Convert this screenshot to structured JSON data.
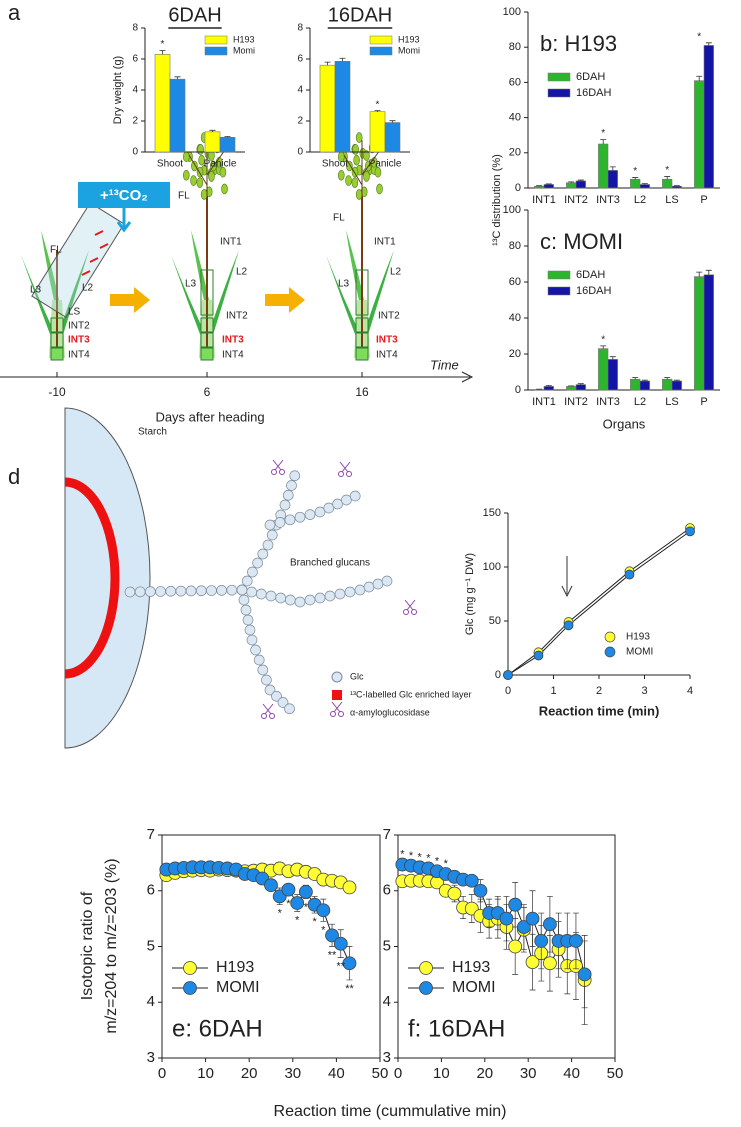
{
  "panel_labels": [
    "a",
    "d"
  ],
  "diagram_a": {
    "co2": "+¹³CO₂",
    "time": "Time",
    "axis_label": "Days after heading",
    "timepoints": [
      "-10",
      "6",
      "16"
    ],
    "plants": [
      {
        "labels": [
          "FL",
          "L3",
          "L2",
          "LS",
          "INT2",
          "INT3",
          "INT4"
        ]
      },
      {
        "labels": [
          "FL",
          "INT1",
          "L2",
          "L3",
          "INT2",
          "INT3",
          "INT4"
        ]
      },
      {
        "labels": [
          "FL",
          "INT1",
          "L2",
          "L3",
          "INT2",
          "INT3",
          "INT4"
        ]
      }
    ]
  },
  "diagram_d": {
    "starch": "Starch",
    "glucans": "Branched glucans",
    "legend": [
      "Glc",
      "¹³C-labelled Glc enriched layer",
      "α-amyloglucosidase"
    ]
  },
  "shared_xlabel": "Reaction time (cummulative min)",
  "chart_data": [
    {
      "type": "bar",
      "title": "6DAH",
      "ylabel": "Dry weight (g)",
      "categories": [
        "Shoot",
        "Panicle"
      ],
      "series": [
        {
          "name": "H193",
          "color": "#ffff00",
          "values": [
            6.3,
            1.3
          ],
          "errors": [
            0.25,
            0.1
          ]
        },
        {
          "name": "Momi",
          "color": "#1e88e5",
          "values": [
            4.7,
            0.95
          ],
          "errors": [
            0.15,
            0.05
          ]
        }
      ],
      "significance": [
        "*",
        null
      ],
      "ylim": [
        0,
        8
      ],
      "yticks": [
        0,
        2,
        4,
        6,
        8
      ]
    },
    {
      "type": "bar",
      "title": "16DAH",
      "categories": [
        "Shoot",
        "Panicle"
      ],
      "series": [
        {
          "name": "H193",
          "color": "#ffff00",
          "values": [
            5.6,
            2.6
          ],
          "errors": [
            0.2,
            0.07
          ]
        },
        {
          "name": "Momi",
          "color": "#1e88e5",
          "values": [
            5.85,
            1.9
          ],
          "errors": [
            0.2,
            0.12
          ]
        }
      ],
      "significance": [
        null,
        "*"
      ],
      "ylim": [
        0,
        8
      ],
      "yticks": [
        0,
        2,
        4,
        6,
        8
      ]
    },
    {
      "type": "bar",
      "title": "b: H193",
      "ylabel": "¹³C distribution (%)",
      "categories": [
        "INT1",
        "INT2",
        "INT3",
        "L2",
        "LS",
        "P"
      ],
      "series": [
        {
          "name": "6DAH",
          "color": "#2db52d",
          "values": [
            1,
            3,
            25,
            5,
            5,
            61
          ],
          "errors": [
            0.3,
            0.5,
            2.5,
            1,
            1.5,
            2.5
          ]
        },
        {
          "name": "16DAH",
          "color": "#1515a5",
          "values": [
            2,
            4,
            10,
            2,
            1,
            81
          ],
          "errors": [
            0.3,
            0.5,
            2,
            0.5,
            0.3,
            1.5
          ]
        }
      ],
      "significance": [
        null,
        null,
        "*",
        "*",
        "*",
        "*"
      ],
      "ylim": [
        0,
        100
      ],
      "yticks": [
        0,
        20,
        40,
        60,
        80,
        100
      ]
    },
    {
      "type": "bar",
      "title": "c: MOMI",
      "xlabel": "Organs",
      "categories": [
        "INT1",
        "INT2",
        "INT3",
        "L2",
        "LS",
        "P"
      ],
      "series": [
        {
          "name": "6DAH",
          "color": "#2db52d",
          "values": [
            0.3,
            2,
            23,
            6,
            6,
            63
          ],
          "errors": [
            0.2,
            0.3,
            1.5,
            1,
            1,
            2.5
          ]
        },
        {
          "name": "16DAH",
          "color": "#1515a5",
          "values": [
            2,
            3,
            17,
            5,
            5,
            64
          ],
          "errors": [
            0.5,
            0.5,
            1.5,
            0.5,
            0.5,
            2.5
          ]
        }
      ],
      "significance": [
        null,
        null,
        "*",
        null,
        null,
        null
      ],
      "ylim": [
        0,
        100
      ],
      "yticks": [
        0,
        20,
        40,
        60,
        80,
        100
      ]
    },
    {
      "type": "line",
      "xlabel": "Reaction time (min)",
      "ylabel": "Glc (mg g⁻¹ DW)",
      "x": [
        0,
        0.67,
        1.33,
        2.67,
        4
      ],
      "series": [
        {
          "name": "H193",
          "color": "#ffff33",
          "values": [
            0,
            21,
            49,
            96,
            136
          ]
        },
        {
          "name": "MOMI",
          "color": "#1e88e5",
          "values": [
            0,
            18,
            46,
            93,
            133
          ]
        }
      ],
      "xlim": [
        0,
        4
      ],
      "xticks": [
        0,
        1,
        2,
        3,
        4
      ],
      "ylim": [
        0,
        150
      ],
      "yticks": [
        0,
        50,
        100,
        150
      ]
    },
    {
      "type": "line",
      "title": "e: 6DAH",
      "ylabel": [
        "Isotopic ratio of",
        "m/z=204 to m/z=203 (%)"
      ],
      "x": [
        1,
        3,
        5,
        7,
        9,
        11,
        13,
        15,
        17,
        19,
        21,
        23,
        25,
        27,
        29,
        31,
        33,
        35,
        37,
        39,
        41,
        43
      ],
      "series": [
        {
          "name": "H193",
          "color": "#ffff33",
          "values": [
            6.28,
            6.32,
            6.35,
            6.36,
            6.37,
            6.36,
            6.38,
            6.37,
            6.36,
            6.35,
            6.36,
            6.38,
            6.36,
            6.4,
            6.35,
            6.38,
            6.34,
            6.3,
            6.2,
            6.18,
            6.15,
            6.06
          ],
          "errors": [
            0.06,
            0.05,
            0.05,
            0.05,
            0.05,
            0.05,
            0.05,
            0.05,
            0.05,
            0.05,
            0.05,
            0.05,
            0.05,
            0.08,
            0.05,
            0.05,
            0.05,
            0.05,
            0.05,
            0.05,
            0.05,
            0.05
          ]
        },
        {
          "name": "MOMI",
          "color": "#1e88e5",
          "values": [
            6.38,
            6.4,
            6.41,
            6.42,
            6.42,
            6.42,
            6.41,
            6.4,
            6.38,
            6.3,
            6.28,
            6.22,
            6.1,
            5.9,
            6.02,
            5.78,
            5.98,
            5.75,
            5.65,
            5.2,
            5.05,
            4.7
          ],
          "errors": [
            0.05,
            0.05,
            0.05,
            0.05,
            0.05,
            0.05,
            0.05,
            0.05,
            0.05,
            0.08,
            0.08,
            0.1,
            0.1,
            0.15,
            0.1,
            0.15,
            0.12,
            0.15,
            0.2,
            0.2,
            0.25,
            0.3
          ]
        }
      ],
      "significance": [
        null,
        null,
        null,
        null,
        null,
        null,
        null,
        null,
        null,
        null,
        null,
        null,
        null,
        "*",
        "*",
        "*",
        "*",
        "*",
        "*",
        "**",
        "**",
        "**"
      ],
      "xlim": [
        0,
        50
      ],
      "xticks": [
        0,
        10,
        20,
        30,
        40,
        50
      ],
      "ylim": [
        3,
        7
      ],
      "yticks": [
        3,
        4,
        5,
        6,
        7
      ]
    },
    {
      "type": "line",
      "title": "f: 16DAH",
      "x": [
        1,
        3,
        5,
        7,
        9,
        11,
        13,
        15,
        17,
        19,
        21,
        23,
        25,
        27,
        29,
        31,
        33,
        35,
        37,
        39,
        41,
        43
      ],
      "series": [
        {
          "name": "H193",
          "color": "#ffff33",
          "values": [
            6.17,
            6.18,
            6.18,
            6.17,
            6.15,
            6.0,
            5.95,
            5.7,
            5.68,
            5.55,
            5.45,
            5.5,
            5.35,
            5.0,
            5.3,
            4.72,
            4.88,
            4.7,
            4.95,
            4.65,
            4.65,
            4.4
          ],
          "errors": [
            0.05,
            0.05,
            0.05,
            0.05,
            0.08,
            0.1,
            0.15,
            0.2,
            0.25,
            0.3,
            0.3,
            0.35,
            0.4,
            0.5,
            0.4,
            0.5,
            0.5,
            0.5,
            0.5,
            0.5,
            0.6,
            0.8
          ]
        },
        {
          "name": "MOMI",
          "color": "#1e88e5",
          "values": [
            6.47,
            6.45,
            6.42,
            6.4,
            6.35,
            6.3,
            6.25,
            6.2,
            6.18,
            6.0,
            5.6,
            5.6,
            5.5,
            5.75,
            5.35,
            5.5,
            5.1,
            5.4,
            5.1,
            5.1,
            5.1,
            4.5
          ],
          "errors": [
            0.05,
            0.05,
            0.05,
            0.05,
            0.05,
            0.05,
            0.08,
            0.1,
            0.1,
            0.2,
            0.25,
            0.3,
            0.4,
            0.4,
            0.4,
            0.5,
            0.5,
            0.5,
            0.5,
            0.5,
            0.5,
            0.6
          ]
        }
      ],
      "significance": [
        "*",
        "*",
        "*",
        "*",
        "*",
        "*",
        null,
        null,
        null,
        null,
        null,
        null,
        null,
        null,
        null,
        null,
        null,
        null,
        null,
        null,
        null,
        null
      ],
      "xlim": [
        0,
        50
      ],
      "xticks": [
        0,
        10,
        20,
        30,
        40,
        50
      ],
      "ylim": [
        3,
        7
      ],
      "yticks": [
        3,
        4,
        5,
        6,
        7
      ]
    }
  ]
}
